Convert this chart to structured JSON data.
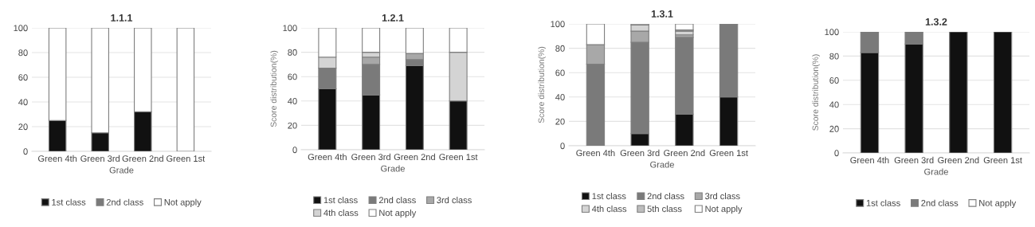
{
  "chart_data": [
    {
      "type": "bar",
      "stacked": true,
      "title": "1.1.1",
      "xlabel": "Grade",
      "categories": [
        "Green 4th",
        "Green 3rd",
        "Green 2nd",
        "Green 1st"
      ],
      "ylim": [
        0,
        100
      ],
      "yticks": [
        0,
        20,
        40,
        60,
        80,
        100
      ],
      "grid": "y",
      "legend": "bottom",
      "series": [
        {
          "name": "1st class",
          "color": "#111111",
          "values": [
            25,
            15,
            32,
            0
          ]
        },
        {
          "name": "2nd class",
          "color": "#7a7a7a",
          "values": [
            0,
            0,
            0,
            0
          ]
        },
        {
          "name": "Not apply",
          "color": "#ffffff",
          "values": [
            75,
            85,
            68,
            100
          ]
        }
      ]
    },
    {
      "type": "bar",
      "stacked": true,
      "title": "1.2.1",
      "xlabel": "Grade",
      "ylabel": "Score distribution(%)",
      "categories": [
        "Green 4th",
        "Green 3rd",
        "Green 2nd",
        "Green 1st"
      ],
      "ylim": [
        0,
        100
      ],
      "yticks": [
        0,
        20,
        40,
        60,
        80,
        100
      ],
      "grid": "y",
      "legend": "bottom",
      "series": [
        {
          "name": "1st class",
          "color": "#111111",
          "values": [
            50,
            45,
            69,
            40
          ]
        },
        {
          "name": "2nd class",
          "color": "#7a7a7a",
          "values": [
            17,
            25,
            5,
            0
          ]
        },
        {
          "name": "3rd class",
          "color": "#a8a8a8",
          "values": [
            0,
            6,
            5,
            0
          ]
        },
        {
          "name": "4th class",
          "color": "#d4d4d4",
          "values": [
            9,
            4,
            0,
            40
          ]
        },
        {
          "name": "Not apply",
          "color": "#ffffff",
          "values": [
            24,
            20,
            21,
            20
          ]
        }
      ]
    },
    {
      "type": "bar",
      "stacked": true,
      "title": "1.3.1",
      "xlabel": "Grade",
      "ylabel": "Score distribution(%)",
      "categories": [
        "Green 4th",
        "Green 3rd",
        "Green 2nd",
        "Green 1st"
      ],
      "ylim": [
        0,
        100
      ],
      "yticks": [
        0,
        20,
        40,
        60,
        80,
        100
      ],
      "grid": "y",
      "legend": "bottom",
      "series": [
        {
          "name": "1st class",
          "color": "#111111",
          "values": [
            0,
            10,
            26,
            40
          ]
        },
        {
          "name": "2nd class",
          "color": "#7a7a7a",
          "values": [
            67,
            75,
            63,
            60
          ]
        },
        {
          "name": "3rd class",
          "color": "#a8a8a8",
          "values": [
            16,
            9,
            2,
            0
          ]
        },
        {
          "name": "4th class",
          "color": "#d4d4d4",
          "values": [
            0,
            5,
            3,
            0
          ]
        },
        {
          "name": "5th class",
          "color": "#bdbdbd",
          "values": [
            0,
            1,
            1,
            0
          ]
        },
        {
          "name": "Not apply",
          "color": "#ffffff",
          "values": [
            17,
            0,
            5,
            0
          ]
        }
      ]
    },
    {
      "type": "bar",
      "stacked": true,
      "title": "1.3.2",
      "xlabel": "Grade",
      "ylabel": "Score distribution(%)",
      "categories": [
        "Green 4th",
        "Green 3rd",
        "Green 2nd",
        "Green 1st"
      ],
      "ylim": [
        0,
        100
      ],
      "yticks": [
        0,
        20,
        40,
        60,
        80,
        100
      ],
      "grid": "y",
      "legend": "bottom",
      "series": [
        {
          "name": "1st class",
          "color": "#111111",
          "values": [
            83,
            90,
            100,
            100
          ]
        },
        {
          "name": "2nd class",
          "color": "#7a7a7a",
          "values": [
            17,
            10,
            0,
            0
          ]
        },
        {
          "name": "Not apply",
          "color": "#ffffff",
          "values": [
            0,
            0,
            0,
            0
          ]
        }
      ]
    }
  ]
}
